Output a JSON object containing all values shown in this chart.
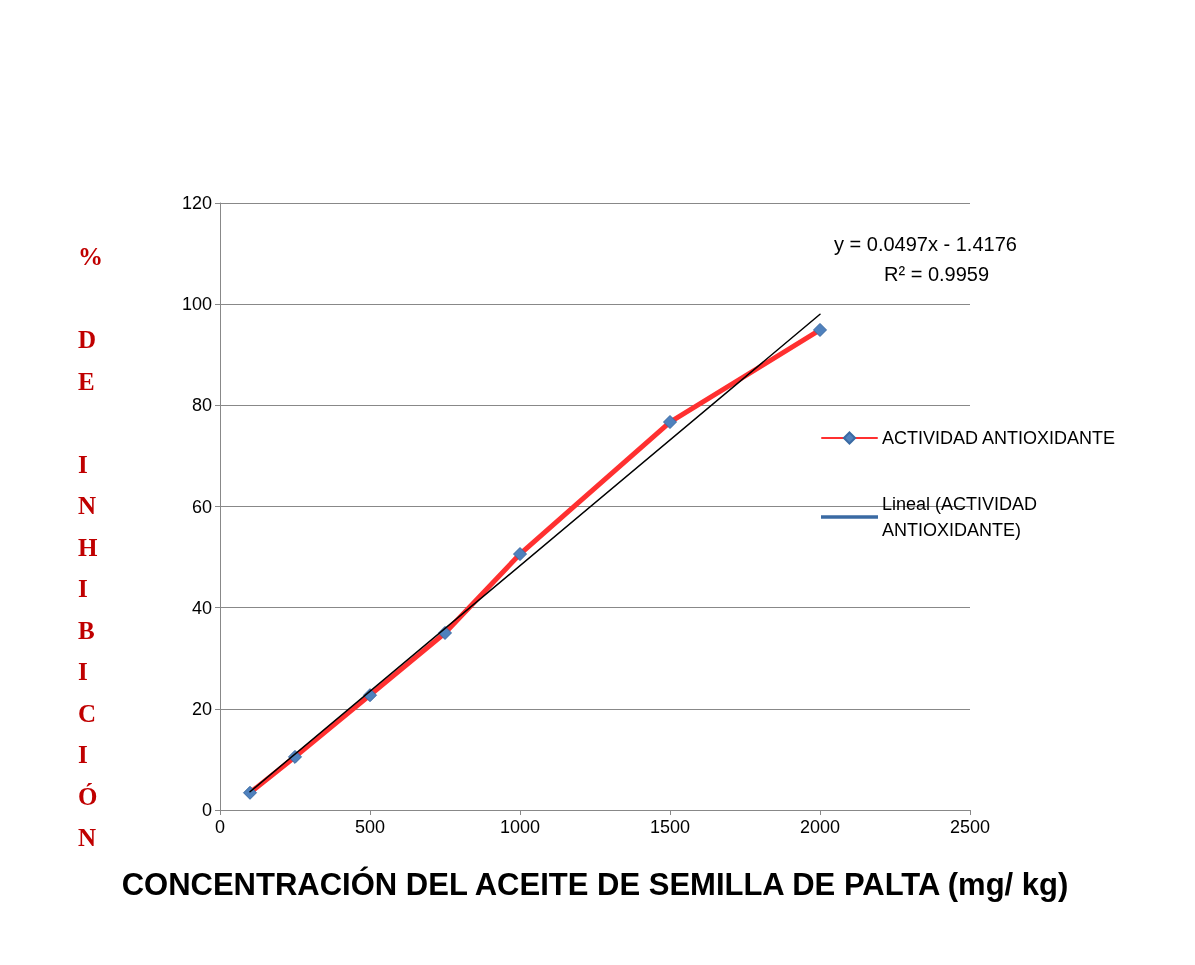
{
  "chart_data": {
    "type": "line",
    "xlabel": "CONCENTRACIÓN DEL ACEITE DE SEMILLA DE PALTA (mg/ kg)",
    "ylabel": "% DE INHIBICIÓN",
    "annotations": [
      "y = 0.0497x - 1.4176",
      "R² = 0.9959"
    ],
    "xlim": [
      0,
      2500
    ],
    "xticks": [
      0,
      500,
      {
        "value": 1000,
        "label": "1000"
      },
      {
        "value": 1500,
        "label": "1500"
      },
      {
        "value": 2000,
        "label": "2000"
      },
      {
        "value": 2500,
        "label": "2500"
      }
    ],
    "ylim": [
      0,
      120
    ],
    "yticks": [
      0,
      20,
      40,
      60,
      80,
      100,
      120
    ],
    "grid": "y",
    "legend": "right",
    "line_style": "solid",
    "series": [
      {
        "name": "ACTIVIDAD ANTIOXIDANTE",
        "color": "#ff3030",
        "marker": "diamond",
        "x": [
          100,
          250,
          500,
          750,
          1000,
          1500,
          2000
        ],
        "values": [
          3.4,
          10.5,
          22.7,
          35,
          50.6,
          76.7,
          94.9
        ]
      },
      {
        "name": "Lineal (ACTIVIDAD ANTIOXIDANTE)",
        "color": "#000000",
        "marker": "none",
        "x": [
          100,
          2000
        ],
        "values": [
          3.6,
          98
        ]
      }
    ]
  }
}
